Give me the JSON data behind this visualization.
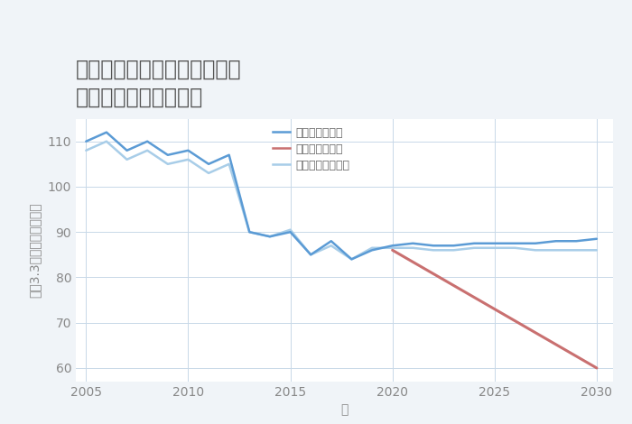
{
  "title_line1": "兵庫県加古郡播磨町東新島の",
  "title_line2": "中古戸建ての価格推移",
  "xlabel": "年",
  "ylabel": "坪（3.3㎡）単価（万円）",
  "ylim": [
    57,
    115
  ],
  "yticks": [
    60,
    70,
    80,
    90,
    100,
    110
  ],
  "background_color": "#f0f4f8",
  "plot_bg_color": "#ffffff",
  "good_scenario": {
    "label": "グッドシナリオ",
    "color": "#5b9bd5",
    "x": [
      2005,
      2006,
      2007,
      2008,
      2009,
      2010,
      2011,
      2012,
      2013,
      2014,
      2015,
      2016,
      2017,
      2018,
      2019,
      2020,
      2021,
      2022,
      2023,
      2024,
      2025,
      2026,
      2027,
      2028,
      2029,
      2030
    ],
    "y": [
      110,
      112,
      108,
      110,
      107,
      108,
      105,
      107,
      90,
      89,
      90,
      85,
      88,
      84,
      86,
      87,
      87.5,
      87,
      87,
      87.5,
      87.5,
      87.5,
      87.5,
      88,
      88,
      88.5
    ],
    "linewidth": 1.8
  },
  "bad_scenario": {
    "label": "バッドシナリオ",
    "color": "#c97070",
    "x": [
      2020,
      2025,
      2030
    ],
    "y": [
      86,
      73,
      60
    ],
    "linewidth": 2.2
  },
  "normal_scenario": {
    "label": "ノーマルシナリオ",
    "color": "#a8cde8",
    "x": [
      2005,
      2006,
      2007,
      2008,
      2009,
      2010,
      2011,
      2012,
      2013,
      2014,
      2015,
      2016,
      2017,
      2018,
      2019,
      2020,
      2021,
      2022,
      2023,
      2024,
      2025,
      2026,
      2027,
      2028,
      2029,
      2030
    ],
    "y": [
      108,
      110,
      106,
      108,
      105,
      106,
      103,
      105,
      90,
      89,
      90.5,
      85,
      87,
      84,
      86.5,
      86.5,
      86.5,
      86,
      86,
      86.5,
      86.5,
      86.5,
      86,
      86,
      86,
      86
    ],
    "linewidth": 1.8
  },
  "grid_color": "#c8d8e8",
  "title_color": "#555555",
  "axis_label_color": "#888888",
  "tick_color": "#888888",
  "legend_text_color": "#666666",
  "title_fontsize": 17,
  "axis_label_fontsize": 10,
  "tick_fontsize": 10,
  "legend_fontsize": 9,
  "xticks": [
    2005,
    2010,
    2015,
    2020,
    2025,
    2030
  ],
  "xlim": [
    2004.5,
    2030.8
  ]
}
